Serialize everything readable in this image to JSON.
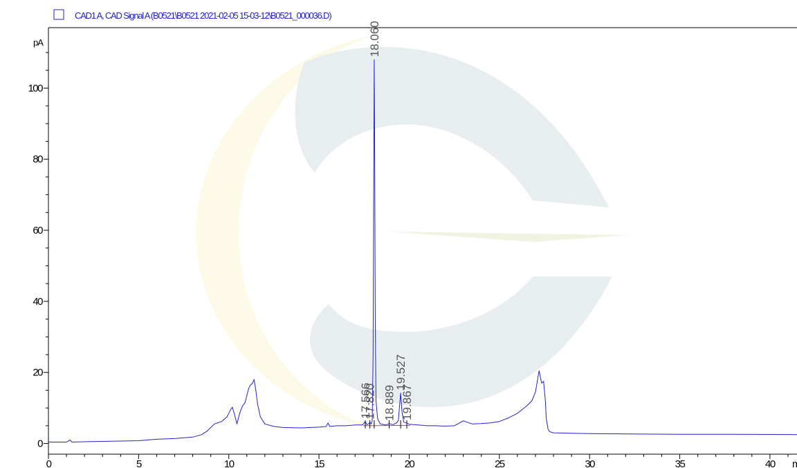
{
  "chart_data": {
    "type": "line",
    "legend": "CAD1 A, CAD Signal A (B0521\\B0521 2021-02-05 15-03-12\\B0521_000036.D)",
    "ylabel": "pA",
    "xlabel_partial": "m",
    "xlim": [
      0,
      41.5
    ],
    "ylim": [
      -3,
      117
    ],
    "x_ticks": [
      0,
      5,
      10,
      15,
      20,
      25,
      30,
      35,
      40
    ],
    "x_tick_labels": [
      "0",
      "5",
      "10",
      "15",
      "20",
      "25",
      "30",
      "35",
      "40"
    ],
    "y_ticks": [
      0,
      20,
      40,
      60,
      80,
      100
    ],
    "y_tick_labels": [
      "0",
      "20",
      "40",
      "60",
      "80",
      "100"
    ],
    "series_color": "#2222cc",
    "baseline_color": "#cc3399",
    "peaks": [
      {
        "label": "17.566",
        "x": 17.566,
        "y": 6.2
      },
      {
        "label": "17.820",
        "x": 17.82,
        "y": 6.0
      },
      {
        "label": "18.060",
        "x": 18.06,
        "y": 108.0
      },
      {
        "label": "18.889",
        "x": 18.889,
        "y": 5.6
      },
      {
        "label": "19.527",
        "x": 19.527,
        "y": 14.2
      },
      {
        "label": "19.867",
        "x": 19.867,
        "y": 5.8
      }
    ],
    "series": [
      {
        "x": [
          0,
          1.0,
          1.2,
          1.3,
          2,
          3,
          4,
          5,
          6,
          7,
          8,
          8.5,
          8.8,
          9.2,
          9.6,
          9.9,
          10.1,
          10.2,
          10.3,
          10.45,
          10.6,
          10.75,
          10.9,
          11.0,
          11.1,
          11.2,
          11.3,
          11.4,
          11.5,
          11.6,
          11.75,
          12.0,
          12.5,
          13,
          14,
          15,
          15.4,
          15.5,
          15.6,
          16,
          16.5,
          17,
          17.4,
          17.5,
          17.566,
          17.65,
          17.75,
          17.82,
          17.9,
          17.95,
          18.0,
          18.03,
          18.06,
          18.09,
          18.12,
          18.16,
          18.25,
          18.4,
          18.7,
          18.889,
          19.1,
          19.3,
          19.4,
          19.527,
          19.6,
          19.7,
          19.867,
          20.0,
          20.5,
          21,
          21.5,
          22,
          22.5,
          22.8,
          23.0,
          23.2,
          23.5,
          24,
          24.5,
          25,
          25.5,
          26,
          26.5,
          26.8,
          27.0,
          27.1,
          27.2,
          27.3,
          27.35,
          27.45,
          27.55,
          27.6,
          27.7,
          27.8,
          28,
          29,
          30,
          32,
          35,
          38,
          41.5
        ],
        "y": [
          0.4,
          0.4,
          1.0,
          0.4,
          0.5,
          0.6,
          0.7,
          0.8,
          1.2,
          1.4,
          1.8,
          2.5,
          3.5,
          5.5,
          6.2,
          7.5,
          9.5,
          10.2,
          8.5,
          5.5,
          8.5,
          10.5,
          11.5,
          13.5,
          15.5,
          16.5,
          16.8,
          18.0,
          15.0,
          11.0,
          7.5,
          5.5,
          4.8,
          4.5,
          4.4,
          4.6,
          4.8,
          5.8,
          4.8,
          5.0,
          5.0,
          5.2,
          5.2,
          5.8,
          6.2,
          5.3,
          5.5,
          6.0,
          5.5,
          6.5,
          25.0,
          70.0,
          108.0,
          80.0,
          35.0,
          12.0,
          7.0,
          5.5,
          5.2,
          5.6,
          5.3,
          5.8,
          6.5,
          14.2,
          9.0,
          6.0,
          5.8,
          5.4,
          5.2,
          5.0,
          5.0,
          4.9,
          5.0,
          5.8,
          6.4,
          6.0,
          5.5,
          5.6,
          5.8,
          6.2,
          7.2,
          8.5,
          10.5,
          12.0,
          14.5,
          17.5,
          20.5,
          18.0,
          17.0,
          17.5,
          12.0,
          7.0,
          4.0,
          3.3,
          3.0,
          2.9,
          2.8,
          2.7,
          2.6,
          2.6,
          2.5
        ]
      }
    ]
  }
}
